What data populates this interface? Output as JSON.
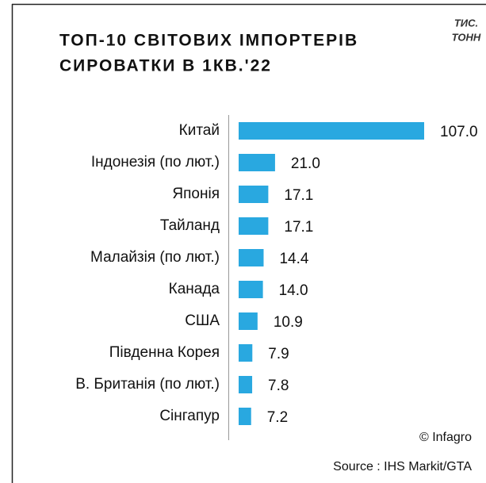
{
  "chart_data": {
    "type": "bar",
    "orientation": "horizontal",
    "title": [
      "ТОП-10 СВІТОВИХ ІМПОРТЕРІВ",
      "СИРОВАТКИ В 1КВ.'22"
    ],
    "unit": [
      "ТИС.",
      "ТОНН"
    ],
    "categories": [
      "Китай",
      "Індонезія (по лют.)",
      "Японія",
      "Тайланд",
      "Малайзія (по лют.)",
      "Канада",
      "США",
      "Південна Корея",
      "В. Британія (по лют.)",
      "Сінгапур"
    ],
    "values": [
      107.0,
      21.0,
      17.1,
      17.1,
      14.4,
      14.0,
      10.9,
      7.9,
      7.8,
      7.2
    ],
    "value_labels": [
      "107.0",
      "21.0",
      "17.1",
      "17.1",
      "14.4",
      "14.0",
      "10.9",
      "7.9",
      "7.8",
      "7.2"
    ],
    "color": "#29a8e0",
    "credit": "© Infagro",
    "source": "Source : IHS Markit/GTA"
  }
}
